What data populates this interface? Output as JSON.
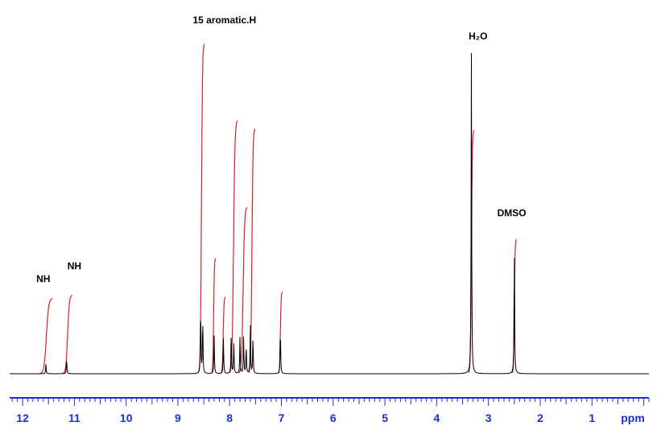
{
  "chart_data": {
    "type": "line",
    "x_unit_label": "ppm",
    "xlim": [
      12.25,
      -0.1
    ],
    "x_reversed": true,
    "x_ticks": [
      12,
      11,
      10,
      9,
      8,
      7,
      6,
      5,
      4,
      3,
      2,
      1
    ],
    "x_tick_labels": [
      "12",
      "11",
      "10",
      "9",
      "8",
      "7",
      "6",
      "5",
      "4",
      "3",
      "2",
      "1"
    ],
    "minor_tick_step": 0.1,
    "grid": false,
    "legend": "none",
    "colors": {
      "spectrum": "#000000",
      "integral": "#d42020",
      "axis": "#1a2fd6"
    },
    "series": [
      {
        "kind": "spectrum",
        "peaks": [
          {
            "ppm": 11.55,
            "height": 0.03
          },
          {
            "ppm": 11.15,
            "height": 0.05
          },
          {
            "ppm": 8.56,
            "height": 0.22
          },
          {
            "ppm": 8.52,
            "height": 0.18
          },
          {
            "ppm": 8.3,
            "height": 0.12
          },
          {
            "ppm": 8.12,
            "height": 0.11
          },
          {
            "ppm": 7.97,
            "height": 0.13
          },
          {
            "ppm": 7.92,
            "height": 0.1
          },
          {
            "ppm": 7.8,
            "height": 0.12
          },
          {
            "ppm": 7.73,
            "height": 0.12
          },
          {
            "ppm": 7.68,
            "height": 0.09
          },
          {
            "ppm": 7.6,
            "height": 0.15
          },
          {
            "ppm": 7.55,
            "height": 0.12
          },
          {
            "ppm": 7.02,
            "height": 0.15
          },
          {
            "ppm": 3.33,
            "height": 1.0
          },
          {
            "ppm": 2.5,
            "height": 0.42
          }
        ]
      },
      {
        "kind": "integral",
        "segments": [
          {
            "from": 11.66,
            "to": 11.42,
            "height": 0.235
          },
          {
            "from": 11.22,
            "to": 11.04,
            "height": 0.245
          },
          {
            "from": 8.6,
            "to": 8.49,
            "height": 1.03
          },
          {
            "from": 8.35,
            "to": 8.27,
            "height": 0.36
          },
          {
            "from": 8.17,
            "to": 8.08,
            "height": 0.24
          },
          {
            "from": 8.0,
            "to": 7.85,
            "height": 0.79
          },
          {
            "from": 7.82,
            "to": 7.66,
            "height": 0.52
          },
          {
            "from": 7.63,
            "to": 7.51,
            "height": 0.765
          },
          {
            "from": 7.06,
            "to": 6.98,
            "height": 0.255
          },
          {
            "from": 3.38,
            "to": 3.28,
            "height": 0.76
          },
          {
            "from": 2.54,
            "to": 2.46,
            "height": 0.42
          }
        ]
      }
    ],
    "annotations": [
      {
        "text": "NH",
        "x": 11.6,
        "height": 0.285
      },
      {
        "text": "NH",
        "x": 11.0,
        "height": 0.325
      },
      {
        "text": "15 aromatic.H",
        "x": 8.1,
        "height": 1.09
      },
      {
        "text": "H₂O",
        "x": 3.2,
        "height": 1.04
      },
      {
        "text": "DMSO",
        "x": 2.55,
        "height": 0.49
      }
    ]
  }
}
